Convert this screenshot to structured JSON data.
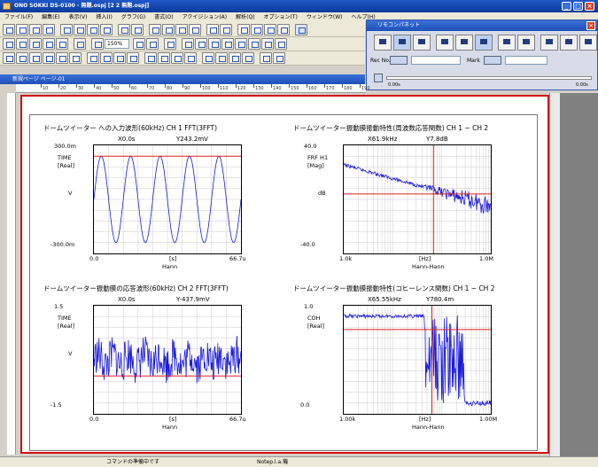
{
  "window": {
    "title": "ONO SOKKI DS-0100 - 無題.ospj [2 2 無題.ospj]"
  },
  "menu": [
    "ファイル(F)",
    "編集(E)",
    "表示(V)",
    "挿入(I)",
    "グラフ(G)",
    "書式(O)",
    "アクイジション(A)",
    "解析(Q)",
    "オプション(T)",
    "ウィンドウ(W)",
    "ヘルプ(H)"
  ],
  "toolbar": {
    "zoom_value": "150%"
  },
  "subwindow": {
    "title": "新規ページ ページ-01"
  },
  "ruler_marks": [
    "10",
    "20",
    "30",
    "40",
    "50",
    "60",
    "70",
    "80",
    "90",
    "100",
    "110",
    "120",
    "130",
    "140",
    "150",
    "160",
    "170",
    "180",
    "190"
  ],
  "remote": {
    "title": "リモコンパネット",
    "rec_no_label": "Rec No.",
    "mark_label": "Mark",
    "time_start": "0.00s",
    "time_end": "0.00s"
  },
  "panels": [
    {
      "title": "ドームツイーター への入力波形(60kHz) CH 1  FFT(3FFT)",
      "cursor_x": "X0.0s",
      "cursor_y": "Y243.2mV",
      "ytype": "TIME",
      "yunit": "[Real]",
      "yaxis": "V",
      "ytop": "300.0m",
      "ybot": "-300.0m",
      "xleft": "0.0",
      "xright": "66.7u",
      "xunit": "[s]",
      "window": "Hann"
    },
    {
      "title": "ドームツイーター振動膜振動特性(周波数応答関数)  CH 1 − CH 2",
      "cursor_x": "X61.9kHz",
      "cursor_y": "Y7.8dB",
      "ytype": "FRF H1",
      "yunit": "[Mag]",
      "yaxis": "dB",
      "ytop": "40.0",
      "ybot": "-40.0",
      "xleft": "1.0k",
      "xright": "1.0M",
      "xunit": "[Hz]",
      "window": "Hann-Hann"
    },
    {
      "title": "ドームツイーター振動膜の応答波形(60kHz) CH 2  FFT(3FFT)",
      "cursor_x": "X0.0s",
      "cursor_y": "Y-437.9mV",
      "ytype": "TIME",
      "yunit": "[Real]",
      "yaxis": "V",
      "ytop": "1.5",
      "ybot": "-1.5",
      "xleft": "0.0",
      "xright": "66.7u",
      "xunit": "[s]",
      "window": "Hann"
    },
    {
      "title": "ドームツイーター振動膜振動特性(コヒーレンス関数)  CH 1 − CH 2",
      "cursor_x": "X65.55kHz",
      "cursor_y": "Y780.4m",
      "ytype": "COH",
      "yunit": "[Real]",
      "yaxis": "",
      "ytop": "1.0",
      "ybot": "0.0",
      "xleft": "1.00k",
      "xright": "1.00M",
      "xunit": "[Hz]",
      "window": "Hann-Hann"
    }
  ],
  "status": {
    "left": "コマンドの準備中です",
    "middle": "Notep.l.a.機"
  },
  "colors": {
    "trace": "#1a1adc",
    "cursor": "#e02020",
    "frame": "#d01010"
  }
}
